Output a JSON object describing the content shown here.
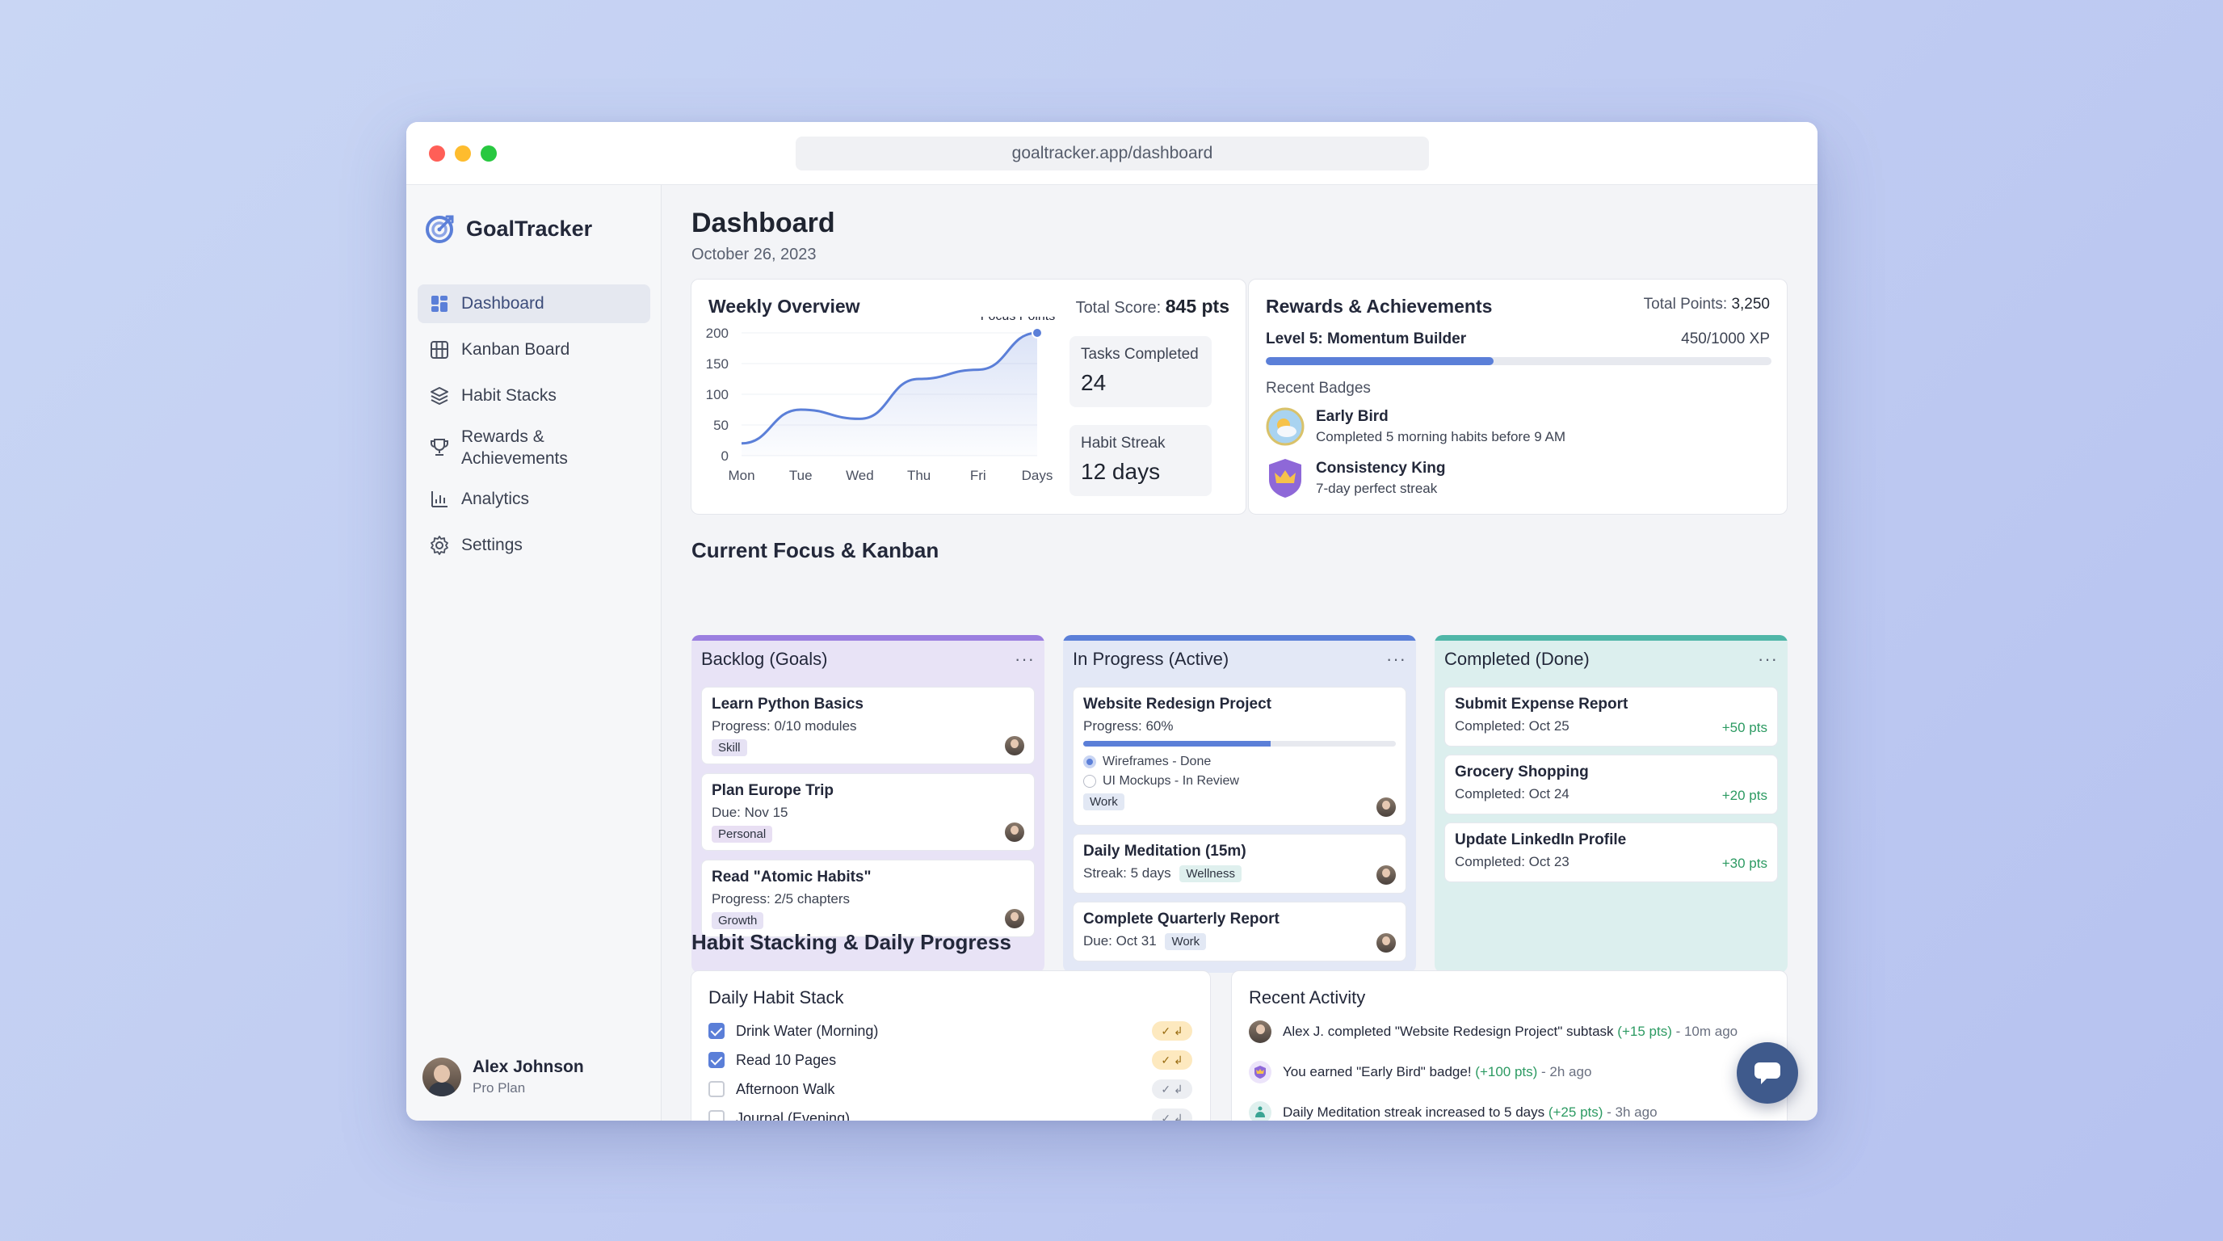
{
  "browser": {
    "url": "goaltracker.app/dashboard"
  },
  "brand": {
    "name": "GoalTracker"
  },
  "sidebar": {
    "items": [
      {
        "label": "Dashboard",
        "icon": "grid-icon",
        "active": true
      },
      {
        "label": "Kanban Board",
        "icon": "kanban-icon"
      },
      {
        "label": "Habit Stacks",
        "icon": "layers-icon"
      },
      {
        "label": "Rewards &",
        "label2": "Achievements",
        "icon": "trophy-icon"
      },
      {
        "label": "Analytics",
        "icon": "bar-chart-icon"
      },
      {
        "label": "Settings",
        "icon": "gear-icon"
      }
    ],
    "user": {
      "name": "Alex Johnson",
      "plan": "Pro Plan"
    }
  },
  "header": {
    "title": "Dashboard",
    "date": "October 26, 2023"
  },
  "weekly": {
    "title": "Weekly Overview",
    "score_label": "Total Score:",
    "score_value": "845 pts",
    "focus_label": "Focus Points",
    "tasks_label": "Tasks Completed",
    "tasks_value": "24",
    "streak_label": "Habit Streak",
    "streak_value": "12 days"
  },
  "chart_data": {
    "type": "line",
    "title": "",
    "x_labels": [
      "Mon",
      "Tue",
      "Wed",
      "Thu",
      "Fri",
      "Days"
    ],
    "x": [
      0,
      1,
      2,
      3,
      4,
      5
    ],
    "y": [
      20,
      75,
      60,
      125,
      140,
      200
    ],
    "yticks": [
      0,
      50,
      100,
      150,
      200
    ],
    "ylim": [
      0,
      200
    ],
    "series_label": "Focus Points",
    "accent": "#5b7fd8",
    "grid": true
  },
  "rewards": {
    "title": "Rewards & Achievements",
    "points_label": "Total Points:",
    "points_value": "3,250",
    "level": "Level 5: Momentum Builder",
    "xp": "450/1000 XP",
    "xp_fraction": 0.45,
    "badges_label": "Recent Badges",
    "badges": [
      {
        "name": "Early Bird",
        "desc": "Completed 5 morning habits before 9 AM",
        "icon": "sunrise-badge-icon"
      },
      {
        "name": "Consistency King",
        "desc": "7-day perfect streak",
        "icon": "crown-badge-icon"
      }
    ]
  },
  "kanban": {
    "title": "Current Focus & Kanban",
    "columns": [
      {
        "title": "Backlog (Goals)",
        "color": "#9b7fe0",
        "cards": [
          {
            "title": "Learn Python Basics",
            "sub": "Progress: 0/10 modules",
            "tag": "Skill"
          },
          {
            "title": "Plan Europe Trip",
            "sub": "Due: Nov 15",
            "tag": "Personal"
          },
          {
            "title": "Read \"Atomic Habits\"",
            "sub": "Progress: 2/5 chapters",
            "tag": "Growth"
          }
        ]
      },
      {
        "title": "In Progress (Active)",
        "color": "#5b7fd8",
        "cards": [
          {
            "title": "Website Redesign Project",
            "sub": "Progress: 60%",
            "progress": 0.6,
            "subtasks": [
              "Wireframes - Done",
              "UI Mockups - In Review"
            ],
            "tag": "Work"
          },
          {
            "title": "Daily Meditation (15m)",
            "sub": "Streak: 5 days",
            "tag": "Wellness"
          },
          {
            "title": "Complete Quarterly Report",
            "sub": "Due: Oct 31",
            "tag": "Work"
          }
        ]
      },
      {
        "title": "Completed (Done)",
        "color": "#4fb6a8",
        "cards": [
          {
            "title": "Submit Expense Report",
            "sub": "Completed: Oct 25",
            "pts": "+50 pts"
          },
          {
            "title": "Grocery Shopping",
            "sub": "Completed: Oct 24",
            "pts": "+20 pts"
          },
          {
            "title": "Update LinkedIn Profile",
            "sub": "Completed: Oct 23",
            "pts": "+30 pts"
          }
        ]
      }
    ],
    "more_glyph": "···"
  },
  "habits": {
    "title": "Habit Stacking & Daily Progress",
    "stack_title": "Daily Habit Stack",
    "items": [
      {
        "label": "Drink Water (Morning)",
        "checked": true
      },
      {
        "label": "Read 10 Pages",
        "checked": true
      },
      {
        "label": "Afternoon Walk",
        "checked": false
      },
      {
        "label": "Journal (Evening)",
        "checked": false
      }
    ],
    "pill_glyph": "✓ ↲"
  },
  "activity": {
    "title": "Recent Activity",
    "items": [
      {
        "text": "Alex J. completed \"Website Redesign Project\" subtask",
        "pts": "(+15 pts)",
        "time": "- 10m ago",
        "icon": "user-avatar-icon"
      },
      {
        "text": "You earned \"Early Bird\" badge!",
        "pts": "(+100 pts)",
        "time": "- 2h ago",
        "icon": "badge-icon"
      },
      {
        "text": "Daily Meditation streak increased to 5 days",
        "pts": "(+25 pts)",
        "time": "- 3h ago",
        "icon": "meditation-icon"
      }
    ]
  },
  "fab": {
    "icon": "chat-icon"
  }
}
